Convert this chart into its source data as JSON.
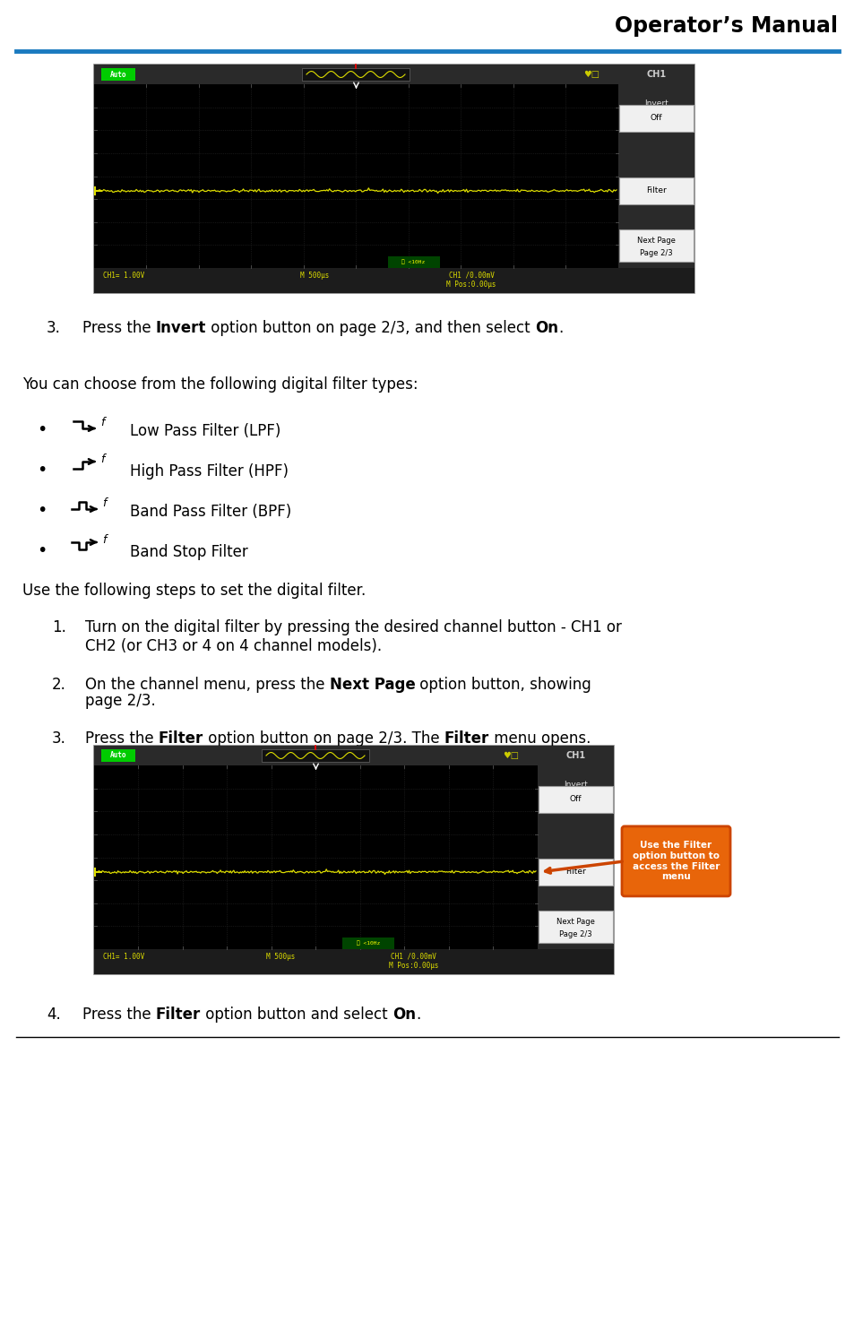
{
  "title": "Operator’s Manual",
  "header_line_color": "#1a7abf",
  "bg_color": "#ffffff",
  "callout_text": "Use the Filter\noption button to\naccess the Filter\nmenu",
  "filter_labels": [
    "Low Pass Filter (LPF)",
    "High Pass Filter (HPF)",
    "Band Pass Filter (BPF)",
    "Band Stop Filter"
  ]
}
